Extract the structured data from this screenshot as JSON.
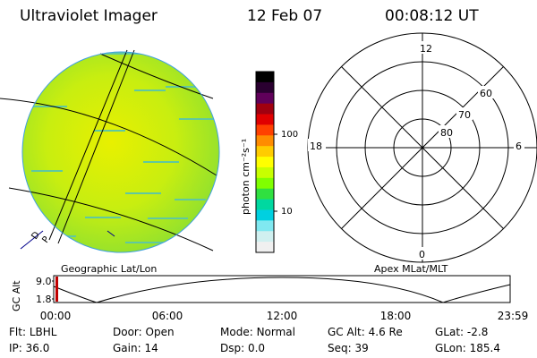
{
  "header": {
    "title": "Ultraviolet Imager",
    "date": "12 Feb 07",
    "time": "00:08:12 UT"
  },
  "image_panel": {
    "caption": "Geographic Lat/Lon",
    "corner_label": "D",
    "corner_label2": "P"
  },
  "colorbar": {
    "unit": "photon cm⁻²s⁻¹",
    "ticks": [
      "100",
      "10"
    ],
    "colors": [
      "#000000",
      "#2a0030",
      "#60005a",
      "#a00010",
      "#e00000",
      "#ff4000",
      "#ff8c00",
      "#ffcc00",
      "#ffff00",
      "#c8ff00",
      "#80ff00",
      "#30e040",
      "#00d8a0",
      "#00d0e0",
      "#80e8f0",
      "#d0f0f0",
      "#f0f0f0"
    ]
  },
  "polar_panel": {
    "caption": "Apex MLat/MLT",
    "mlt_labels": {
      "top": "12",
      "left": "18",
      "right": "6",
      "bottom": "0"
    },
    "lat_labels": [
      "60",
      "70",
      "80"
    ]
  },
  "alt_chart": {
    "ylabel": "GC Alt",
    "yticks": [
      "9.0",
      "1.8"
    ],
    "xticks": [
      "00:00",
      "06:00",
      "12:00",
      "18:00",
      "23:59"
    ]
  },
  "info": {
    "row1": [
      {
        "label": "Flt:",
        "value": "LBHL"
      },
      {
        "label": "Door:",
        "value": "Open"
      },
      {
        "label": "Mode:",
        "value": "Normal"
      },
      {
        "label": "GC Alt:",
        "value": "4.6 Re"
      },
      {
        "label": "GLat:",
        "value": "-2.8"
      }
    ],
    "row2": [
      {
        "label": "IP:",
        "value": "36.0"
      },
      {
        "label": "Gain:",
        "value": "14"
      },
      {
        "label": "Dsp:",
        "value": "0.0"
      },
      {
        "label": "Seq:",
        "value": "39"
      },
      {
        "label": "GLon:",
        "value": "185.4"
      }
    ]
  }
}
